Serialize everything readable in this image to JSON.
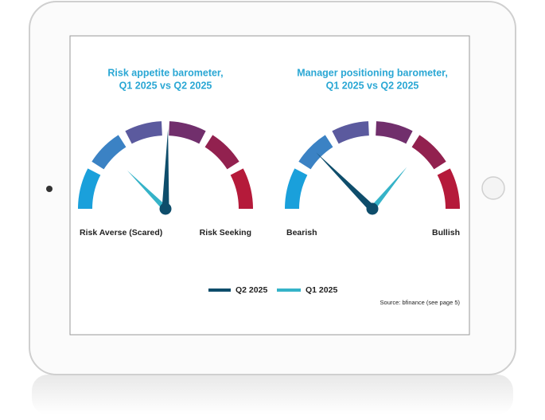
{
  "chart_data": [
    {
      "type": "gauge",
      "title": [
        "Risk appetite barometer,",
        "Q1 2025 vs Q2 2025"
      ],
      "min_label": "Risk Averse (Scared)",
      "max_label": "Risk Seeking",
      "ylim": [
        0,
        100
      ],
      "series": [
        {
          "name": "Q2 2025",
          "color": "#0e4d6b",
          "values": [
            51
          ]
        },
        {
          "name": "Q1 2025",
          "color": "#35b3c8",
          "values": [
            25
          ]
        }
      ]
    },
    {
      "type": "gauge",
      "title": [
        "Manager positioning barometer,",
        "Q1 2025 vs Q2 2025"
      ],
      "min_label": "Bearish",
      "max_label": "Bullish",
      "ylim": [
        0,
        100
      ],
      "series": [
        {
          "name": "Q2 2025",
          "color": "#0e4d6b",
          "values": [
            25
          ]
        },
        {
          "name": "Q1 2025",
          "color": "#35b3c8",
          "values": [
            72
          ]
        }
      ]
    }
  ],
  "source": "Source: bfinance (see page 5)"
}
